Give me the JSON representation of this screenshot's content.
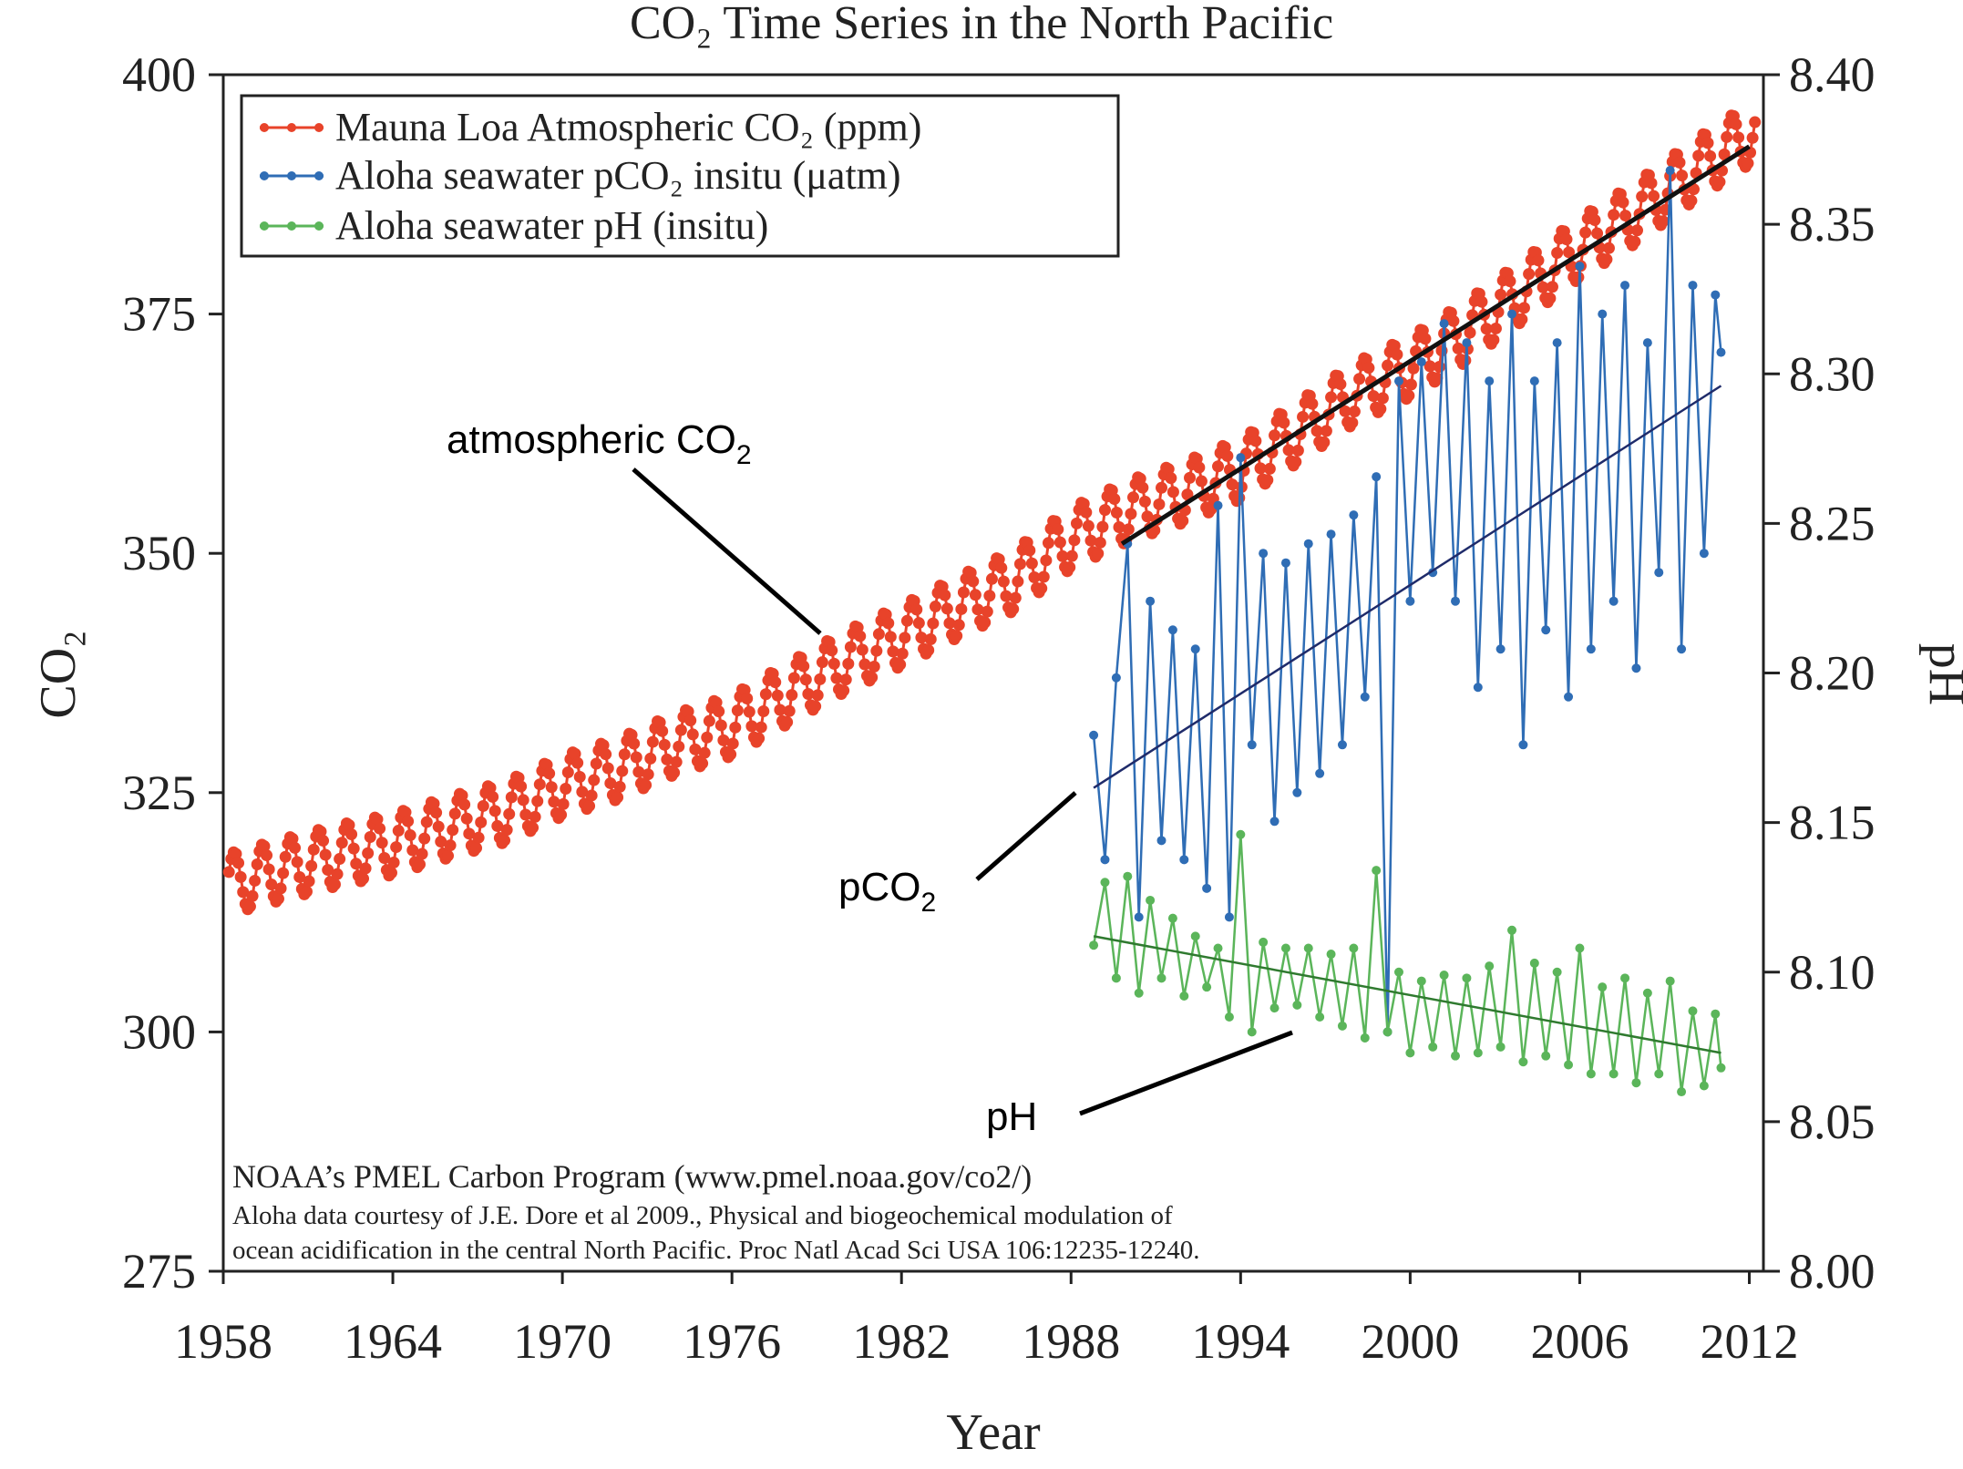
{
  "chart_data": {
    "type": "line",
    "title": "CO₂ Time Series in the North Pacific",
    "xlabel": "Year",
    "ylabel_left": "CO₂",
    "ylabel_right": "pH",
    "xlim": [
      1958,
      2012.5
    ],
    "ylim_left": [
      275,
      400
    ],
    "ylim_right": [
      8.0,
      8.4
    ],
    "x_ticks": [
      "1958",
      "1964",
      "1970",
      "1976",
      "1982",
      "1988",
      "1994",
      "2000",
      "2006",
      "2012"
    ],
    "y_left_ticks": [
      "275",
      "300",
      "325",
      "350",
      "375",
      "400"
    ],
    "y_right_ticks": [
      "8.00",
      "8.05",
      "8.10",
      "8.15",
      "8.20",
      "8.25",
      "8.30",
      "8.35",
      "8.40"
    ],
    "grid": false,
    "legend_position": "top-left",
    "colors": {
      "mlo": "#e8432a",
      "pco2": "#2f6db5",
      "ph": "#5bb55a",
      "trend": "#111111",
      "pco2_trend": "#1f2b6a",
      "ph_trend": "#2f7a2f"
    },
    "series": [
      {
        "name": "Mauna Loa Atmospheric CO₂ (ppm)",
        "axis": "left",
        "annual_mean_x": [
          1958,
          1960,
          1962,
          1964,
          1966,
          1968,
          1970,
          1972,
          1974,
          1976,
          1978,
          1980,
          1982,
          1984,
          1986,
          1988,
          1990,
          1992,
          1994,
          1996,
          1998,
          2000,
          2002,
          2004,
          2006,
          2008,
          2010,
          2012
        ],
        "annual_mean_y": [
          315.3,
          316.9,
          318.4,
          319.6,
          321.4,
          323.0,
          325.7,
          327.5,
          330.1,
          332.0,
          335.4,
          338.7,
          341.4,
          344.4,
          347.2,
          351.6,
          354.4,
          356.4,
          358.8,
          362.6,
          366.7,
          369.5,
          373.2,
          377.5,
          381.9,
          385.6,
          389.9,
          393.8
        ],
        "seasonal_amplitude": 3.2
      },
      {
        "name": "Aloha seawater pCO₂ insitu (μatm)",
        "axis": "left",
        "x": [
          1988.8,
          1989.2,
          1989.6,
          1990.0,
          1990.4,
          1990.8,
          1991.2,
          1991.6,
          1992.0,
          1992.4,
          1992.8,
          1993.2,
          1993.6,
          1994.0,
          1994.4,
          1994.8,
          1995.2,
          1995.6,
          1996.0,
          1996.4,
          1996.8,
          1997.2,
          1997.6,
          1998.0,
          1998.4,
          1998.8,
          1999.2,
          1999.6,
          2000.0,
          2000.4,
          2000.8,
          2001.2,
          2001.6,
          2002.0,
          2002.4,
          2002.8,
          2003.2,
          2003.6,
          2004.0,
          2004.4,
          2004.8,
          2005.2,
          2005.6,
          2006.0,
          2006.4,
          2006.8,
          2007.2,
          2007.6,
          2008.0,
          2008.4,
          2008.8,
          2009.2,
          2009.6,
          2010.0,
          2010.4,
          2010.8,
          2011.0
        ],
        "y": [
          331,
          318,
          337,
          351,
          312,
          345,
          320,
          342,
          318,
          340,
          315,
          355,
          312,
          360,
          330,
          350,
          322,
          349,
          325,
          351,
          327,
          352,
          330,
          354,
          335,
          358,
          300,
          368,
          345,
          370,
          348,
          374,
          345,
          372,
          336,
          368,
          340,
          375,
          330,
          368,
          342,
          372,
          335,
          380,
          340,
          375,
          345,
          378,
          338,
          372,
          348,
          390,
          340,
          378,
          350,
          377,
          371
        ]
      },
      {
        "name": "Aloha seawater pH (insitu)",
        "axis": "right",
        "x": [
          1988.8,
          1989.2,
          1989.6,
          1990.0,
          1990.4,
          1990.8,
          1991.2,
          1991.6,
          1992.0,
          1992.4,
          1992.8,
          1993.2,
          1993.6,
          1994.0,
          1994.4,
          1994.8,
          1995.2,
          1995.6,
          1996.0,
          1996.4,
          1996.8,
          1997.2,
          1997.6,
          1998.0,
          1998.4,
          1998.8,
          1999.2,
          1999.6,
          2000.0,
          2000.4,
          2000.8,
          2001.2,
          2001.6,
          2002.0,
          2002.4,
          2002.8,
          2003.2,
          2003.6,
          2004.0,
          2004.4,
          2004.8,
          2005.2,
          2005.6,
          2006.0,
          2006.4,
          2006.8,
          2007.2,
          2007.6,
          2008.0,
          2008.4,
          2008.8,
          2009.2,
          2009.6,
          2010.0,
          2010.4,
          2010.8,
          2011.0
        ],
        "y": [
          8.109,
          8.13,
          8.098,
          8.132,
          8.093,
          8.124,
          8.098,
          8.118,
          8.092,
          8.112,
          8.095,
          8.108,
          8.085,
          8.146,
          8.08,
          8.11,
          8.088,
          8.108,
          8.089,
          8.108,
          8.085,
          8.106,
          8.082,
          8.108,
          8.078,
          8.134,
          8.08,
          8.1,
          8.073,
          8.097,
          8.075,
          8.099,
          8.072,
          8.098,
          8.073,
          8.102,
          8.075,
          8.114,
          8.07,
          8.103,
          8.072,
          8.1,
          8.069,
          8.108,
          8.066,
          8.095,
          8.066,
          8.098,
          8.063,
          8.093,
          8.066,
          8.097,
          8.06,
          8.087,
          8.062,
          8.086,
          8.068
        ]
      }
    ],
    "trend_lines": [
      {
        "name": "atmospheric CO₂ trend",
        "axis": "left",
        "x": [
          1989.8,
          2012.0
        ],
        "y": [
          351.0,
          392.5
        ]
      },
      {
        "name": "pCO₂ trend",
        "axis": "left",
        "x": [
          1988.8,
          2011.0
        ],
        "y": [
          325.5,
          367.5
        ]
      },
      {
        "name": "pH trend",
        "axis": "right",
        "x": [
          1988.8,
          2011.0
        ],
        "y": [
          8.112,
          8.073
        ]
      }
    ],
    "annotations": [
      {
        "id": "atm",
        "label": "atmospheric CO",
        "sub": "2"
      },
      {
        "id": "pco2",
        "label": "pCO",
        "sub": "2"
      },
      {
        "id": "ph",
        "label": "pH",
        "sub": ""
      }
    ],
    "credits": [
      "NOAA’s PMEL Carbon Program (www.pmel.noaa.gov/co2/)",
      "Aloha data courtesy of J.E. Dore et al 2009., Physical and biogeochemical modulation of",
      "ocean acidification in the central North Pacific. Proc Natl Acad Sci USA 106:12235-12240."
    ]
  }
}
